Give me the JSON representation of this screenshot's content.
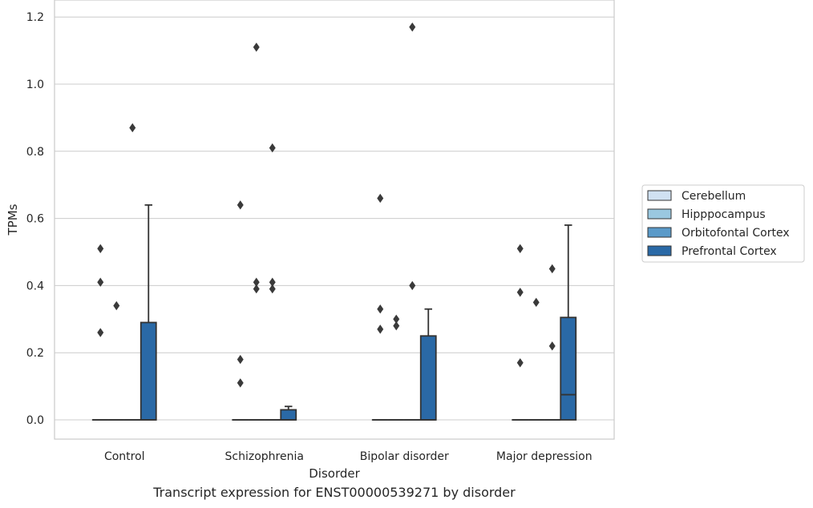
{
  "caption": "Transcript expression for ENST00000539271 by disorder",
  "chart_data": {
    "type": "box",
    "xlabel": "Disorder",
    "ylabel": "TPMs",
    "ylim": [
      -0.058,
      1.235
    ],
    "yticks": [
      "0.0",
      "0.2",
      "0.4",
      "0.6",
      "0.8",
      "1.0",
      "1.2"
    ],
    "grid": "horizontal",
    "legend_placement": "center-right",
    "categories": [
      "Control",
      "Schizophrenia",
      "Bipolar disorder",
      "Major depression"
    ],
    "series": [
      {
        "name": "Cerebellum",
        "color": "#d0e1f2",
        "boxes": [
          {
            "q1": 0,
            "median": 0,
            "q3": 0,
            "whislo": 0,
            "whishi": 0,
            "fliers": [
              0.26,
              0.41,
              0.51
            ]
          },
          {
            "q1": 0,
            "median": 0,
            "q3": 0,
            "whislo": 0,
            "whishi": 0,
            "fliers": [
              0.11,
              0.18,
              0.64
            ]
          },
          {
            "q1": 0,
            "median": 0,
            "q3": 0,
            "whislo": 0,
            "whishi": 0,
            "fliers": [
              0.27,
              0.33,
              0.66
            ]
          },
          {
            "q1": 0,
            "median": 0,
            "q3": 0,
            "whislo": 0,
            "whishi": 0,
            "fliers": [
              0.17,
              0.38,
              0.51
            ]
          }
        ]
      },
      {
        "name": "Hipppocampus",
        "color": "#9ac8e0",
        "boxes": [
          {
            "q1": 0,
            "median": 0,
            "q3": 0,
            "whislo": 0,
            "whishi": 0,
            "fliers": [
              0.34
            ]
          },
          {
            "q1": 0,
            "median": 0,
            "q3": 0,
            "whislo": 0,
            "whishi": 0,
            "fliers": [
              0.39,
              0.41,
              1.11
            ]
          },
          {
            "q1": 0,
            "median": 0,
            "q3": 0,
            "whislo": 0,
            "whishi": 0,
            "fliers": [
              0.28,
              0.3
            ]
          },
          {
            "q1": 0,
            "median": 0,
            "q3": 0,
            "whislo": 0,
            "whishi": 0,
            "fliers": [
              0.35
            ]
          }
        ]
      },
      {
        "name": "Orbitofontal Cortex",
        "color": "#5a9ac9",
        "boxes": [
          {
            "q1": 0,
            "median": 0,
            "q3": 0,
            "whislo": 0,
            "whishi": 0,
            "fliers": [
              0.87
            ]
          },
          {
            "q1": 0,
            "median": 0,
            "q3": 0,
            "whislo": 0,
            "whishi": 0,
            "fliers": [
              0.39,
              0.41,
              0.81
            ]
          },
          {
            "q1": 0,
            "median": 0,
            "q3": 0,
            "whislo": 0,
            "whishi": 0,
            "fliers": [
              0.4,
              1.17
            ]
          },
          {
            "q1": 0,
            "median": 0,
            "q3": 0,
            "whislo": 0,
            "whishi": 0,
            "fliers": [
              0.22,
              0.45
            ]
          }
        ]
      },
      {
        "name": "Prefrontal Cortex",
        "color": "#2a69a6",
        "boxes": [
          {
            "q1": 0,
            "median": 0,
            "q3": 0.29,
            "whislo": 0,
            "whishi": 0.64,
            "fliers": []
          },
          {
            "q1": 0,
            "median": 0,
            "q3": 0.03,
            "whislo": 0,
            "whishi": 0.04,
            "fliers": []
          },
          {
            "q1": 0,
            "median": 0,
            "q3": 0.25,
            "whislo": 0,
            "whishi": 0.33,
            "fliers": []
          },
          {
            "q1": 0,
            "median": 0.075,
            "q3": 0.305,
            "whislo": 0,
            "whishi": 0.58,
            "fliers": []
          }
        ]
      }
    ]
  }
}
